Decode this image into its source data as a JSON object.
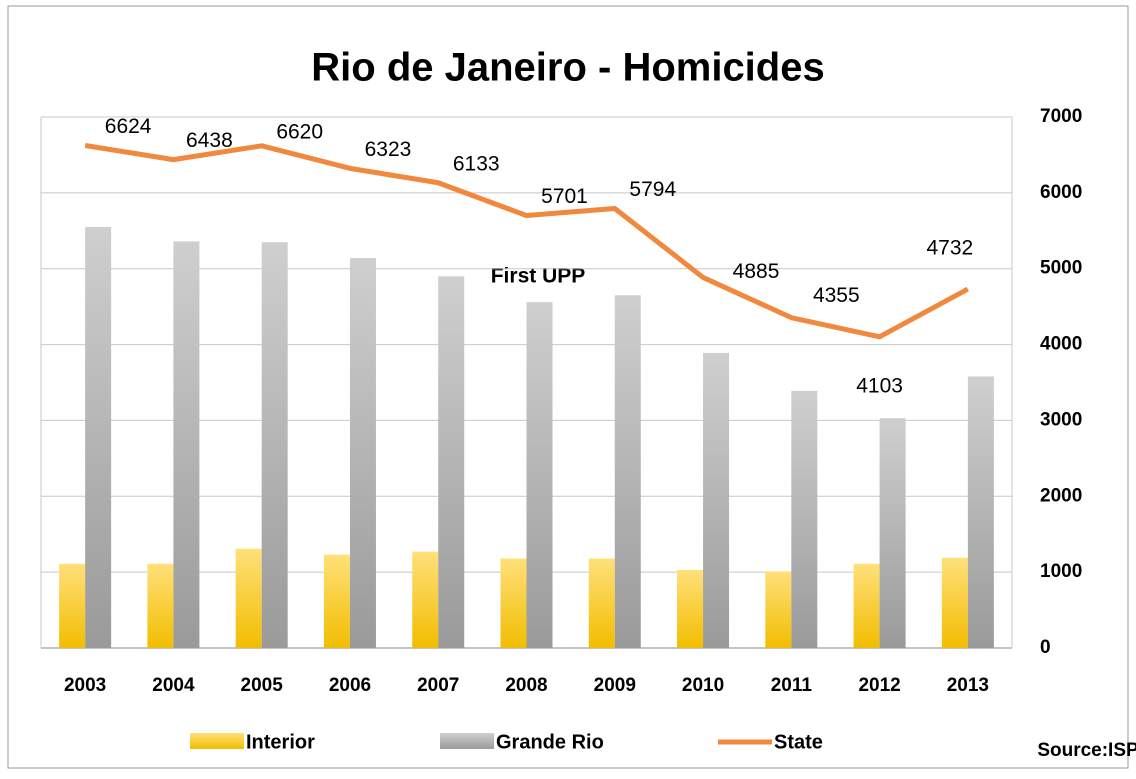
{
  "chart_data": {
    "type": "bar_line",
    "title": "Rio de Janeiro - Homicides",
    "categories": [
      "2003",
      "2004",
      "2005",
      "2006",
      "2007",
      "2008",
      "2009",
      "2010",
      "2011",
      "2012",
      "2013"
    ],
    "series": [
      {
        "name": "Interior",
        "type": "bar",
        "color": "#ffc000",
        "values": [
          1110,
          1110,
          1310,
          1230,
          1270,
          1180,
          1180,
          1030,
          1010,
          1110,
          1190
        ]
      },
      {
        "name": "Grande Rio",
        "type": "bar",
        "color": "#a6a6a6",
        "values": [
          5550,
          5360,
          5350,
          5140,
          4900,
          4560,
          4650,
          3890,
          3390,
          3030,
          3580
        ]
      },
      {
        "name": "State",
        "type": "line",
        "color": "#f0883e",
        "values": [
          6624,
          6438,
          6620,
          6323,
          6133,
          5701,
          5794,
          4885,
          4355,
          4103,
          4732
        ]
      }
    ],
    "annotation": "First UPP",
    "source": "Source:ISP",
    "ylim": [
      0,
      7000
    ],
    "yticks": [
      0,
      1000,
      2000,
      3000,
      4000,
      5000,
      6000,
      7000
    ],
    "grid": true,
    "legend": "bottom"
  }
}
